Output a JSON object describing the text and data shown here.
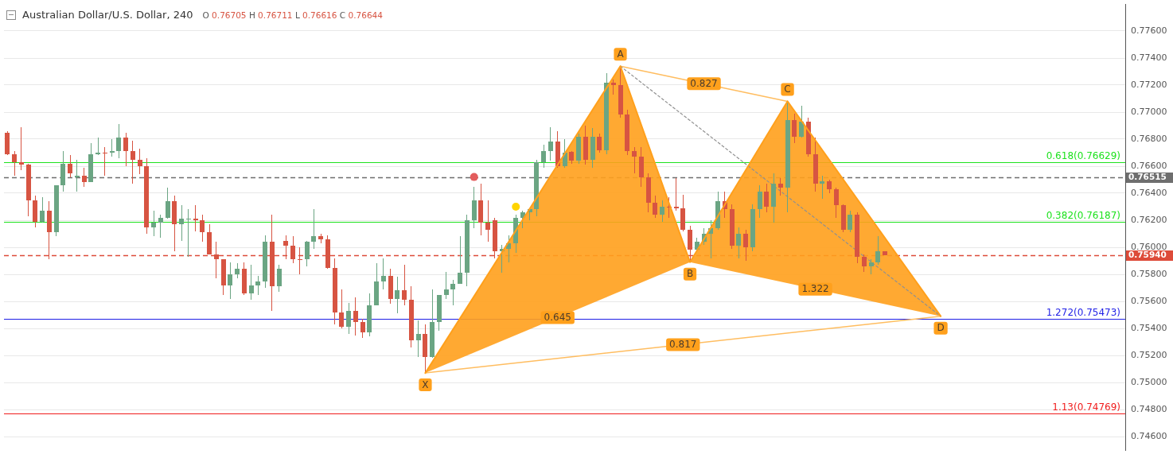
{
  "chart_data": {
    "type": "candlestick",
    "title": "Australian Dollar/U.S. Dollar, 240",
    "subtitle": "O 0.76705 H 0.76711 L 0.76616 C 0.76644",
    "categories": [
      null,
      null,
      null,
      null,
      null,
      null,
      null,
      null,
      null,
      null,
      null,
      null,
      null,
      null,
      null,
      null,
      null,
      null,
      null,
      null,
      null,
      null,
      null,
      null,
      null,
      null,
      null,
      null,
      null,
      null,
      null,
      null,
      null,
      null,
      null,
      null,
      null,
      null,
      null,
      null,
      null,
      null,
      null,
      null,
      null,
      null,
      null,
      null,
      null,
      null,
      null,
      null,
      null,
      null,
      null,
      null,
      null,
      null,
      null,
      null,
      null,
      null,
      null,
      null,
      null,
      null,
      null,
      null,
      null,
      null,
      null,
      null,
      null,
      null,
      null,
      null,
      null,
      null,
      null,
      null,
      null,
      null,
      null,
      null,
      null,
      null,
      null,
      null,
      null,
      null,
      null,
      null,
      null,
      null,
      null,
      null,
      null,
      null,
      null,
      null,
      null,
      null,
      null,
      null,
      null,
      null,
      null,
      null,
      null,
      null,
      null,
      null,
      null,
      null,
      null,
      null,
      null,
      null,
      null,
      null,
      null,
      null,
      null,
      null,
      null,
      null,
      null,
      null,
      null,
      null,
      null,
      null,
      null,
      null,
      null,
      null,
      null,
      null,
      null,
      null,
      null,
      null,
      null,
      null,
      null,
      null,
      null,
      null,
      null,
      null,
      null,
      null,
      null,
      null,
      null,
      null,
      null,
      null,
      null,
      null,
      null
    ],
    "ohlc": [
      [
        0.7685,
        0.7686,
        0.7668,
        0.7669
      ],
      [
        0.7669,
        0.7671,
        0.7653,
        0.7663
      ],
      [
        0.7663,
        0.7689,
        0.7657,
        0.7661
      ],
      [
        0.7661,
        0.7662,
        0.7623,
        0.7635
      ],
      [
        0.7635,
        0.7638,
        0.7615,
        0.7619
      ],
      [
        0.7619,
        0.7637,
        0.7618,
        0.7627
      ],
      [
        0.7627,
        0.7634,
        0.7591,
        0.7611
      ],
      [
        0.7611,
        0.7646,
        0.7608,
        0.7646
      ],
      [
        0.7646,
        0.7671,
        0.7641,
        0.7662
      ],
      [
        0.7662,
        0.7668,
        0.7652,
        0.7655
      ],
      [
        0.7652,
        0.7665,
        0.7641,
        0.7653
      ],
      [
        0.7653,
        0.7659,
        0.7645,
        0.7648
      ],
      [
        0.7648,
        0.7677,
        0.7648,
        0.7669
      ],
      [
        0.7669,
        0.7681,
        0.7668,
        0.767
      ],
      [
        0.767,
        0.7674,
        0.7653,
        0.767
      ],
      [
        0.767,
        0.768,
        0.7667,
        0.7671
      ],
      [
        0.7671,
        0.7691,
        0.7666,
        0.7681
      ],
      [
        0.7681,
        0.7685,
        0.766,
        0.7671
      ],
      [
        0.7671,
        0.7679,
        0.7647,
        0.7665
      ],
      [
        0.7665,
        0.7673,
        0.7654,
        0.766
      ],
      [
        0.766,
        0.7666,
        0.761,
        0.7615
      ],
      [
        0.7615,
        0.7627,
        0.7608,
        0.7618
      ],
      [
        0.7618,
        0.7624,
        0.7607,
        0.7622
      ],
      [
        0.7622,
        0.7644,
        0.7621,
        0.7634
      ],
      [
        0.7634,
        0.7638,
        0.7597,
        0.7617
      ],
      [
        0.7617,
        0.7631,
        0.7605,
        0.7621
      ],
      [
        0.7621,
        0.7628,
        0.7593,
        0.7621
      ],
      [
        0.7621,
        0.7631,
        0.7612,
        0.762
      ],
      [
        0.762,
        0.7624,
        0.7604,
        0.7611
      ],
      [
        0.7611,
        0.7617,
        0.7595,
        0.7595
      ],
      [
        0.7595,
        0.7604,
        0.7577,
        0.7591
      ],
      [
        0.7591,
        0.7591,
        0.7565,
        0.7572
      ],
      [
        0.7572,
        0.7589,
        0.7562,
        0.758
      ],
      [
        0.758,
        0.7588,
        0.7577,
        0.7584
      ],
      [
        0.7584,
        0.7589,
        0.7565,
        0.7566
      ],
      [
        0.7566,
        0.7587,
        0.7561,
        0.7572
      ],
      [
        0.7572,
        0.7579,
        0.7565,
        0.7575
      ],
      [
        0.7575,
        0.7609,
        0.757,
        0.7604
      ],
      [
        0.7604,
        0.7624,
        0.7553,
        0.7571
      ],
      [
        0.7571,
        0.7587,
        0.7567,
        0.7584
      ],
      [
        0.7605,
        0.7609,
        0.7591,
        0.7601
      ],
      [
        0.7601,
        0.7608,
        0.7588,
        0.7591
      ],
      [
        0.7591,
        0.76,
        0.758,
        0.7591
      ],
      [
        0.7591,
        0.7605,
        0.7586,
        0.7604
      ],
      [
        0.7604,
        0.7628,
        0.7599,
        0.7608
      ],
      [
        0.7608,
        0.761,
        0.7603,
        0.7606
      ],
      [
        0.7606,
        0.7609,
        0.7584,
        0.7585
      ],
      [
        0.7585,
        0.7592,
        0.7543,
        0.7552
      ],
      [
        0.7552,
        0.7569,
        0.754,
        0.7541
      ],
      [
        0.7541,
        0.7559,
        0.7536,
        0.7553
      ],
      [
        0.7553,
        0.7563,
        0.7535,
        0.7545
      ],
      [
        0.7545,
        0.7547,
        0.7533,
        0.7537
      ],
      [
        0.7537,
        0.7566,
        0.7534,
        0.7557
      ],
      [
        0.7557,
        0.7588,
        0.7557,
        0.7575
      ],
      [
        0.7575,
        0.7592,
        0.7569,
        0.7579
      ],
      [
        0.7579,
        0.7584,
        0.7558,
        0.7562
      ],
      [
        0.7562,
        0.7578,
        0.7551,
        0.7568
      ],
      [
        0.7568,
        0.7587,
        0.7557,
        0.7561
      ],
      [
        0.7561,
        0.7571,
        0.7526,
        0.7531
      ],
      [
        0.7531,
        0.7546,
        0.7519,
        0.7536
      ],
      [
        0.7536,
        0.7543,
        0.7507,
        0.7519
      ],
      [
        0.7519,
        0.7569,
        0.7518,
        0.7545
      ],
      [
        0.7545,
        0.7565,
        0.7538,
        0.7565
      ],
      [
        0.7565,
        0.7582,
        0.7562,
        0.7569
      ],
      [
        0.7569,
        0.7576,
        0.7557,
        0.7573
      ],
      [
        0.7573,
        0.7608,
        0.7573,
        0.7581
      ],
      [
        0.7581,
        0.7624,
        0.7571,
        0.762
      ],
      [
        0.762,
        0.7645,
        0.7614,
        0.7635
      ],
      [
        0.7635,
        0.7647,
        0.7609,
        0.7618
      ],
      [
        0.7618,
        0.7635,
        0.7604,
        0.7613
      ],
      [
        0.762,
        0.7622,
        0.7592,
        0.7597
      ],
      [
        0.7597,
        0.7602,
        0.7581,
        0.7599
      ],
      [
        0.7599,
        0.7609,
        0.7589,
        0.7603
      ],
      [
        0.7603,
        0.7624,
        0.7596,
        0.7622
      ],
      [
        0.7622,
        0.7627,
        0.7614,
        0.7626
      ],
      [
        0.7626,
        0.7628,
        0.762,
        0.7628
      ],
      [
        0.7628,
        0.7665,
        0.7623,
        0.7663
      ],
      [
        0.7663,
        0.7676,
        0.7659,
        0.7671
      ],
      [
        0.7671,
        0.7689,
        0.7664,
        0.7678
      ],
      [
        0.7678,
        0.7686,
        0.7659,
        0.766
      ],
      [
        0.766,
        0.768,
        0.7659,
        0.767
      ],
      [
        0.76705,
        0.76711,
        0.76616,
        0.76644
      ],
      [
        0.7664,
        0.7684,
        0.7662,
        0.7682
      ],
      [
        0.7682,
        0.769,
        0.7661,
        0.7665
      ],
      [
        0.7665,
        0.7688,
        0.7659,
        0.7682
      ],
      [
        0.7682,
        0.7684,
        0.767,
        0.7672
      ],
      [
        0.7672,
        0.7729,
        0.7669,
        0.7722
      ],
      [
        0.7722,
        0.7724,
        0.7713,
        0.772
      ],
      [
        0.772,
        0.7734,
        0.7696,
        0.7698
      ],
      [
        0.7698,
        0.7702,
        0.7668,
        0.7671
      ],
      [
        0.7671,
        0.7674,
        0.7655,
        0.7667
      ],
      [
        0.7667,
        0.7674,
        0.7645,
        0.7652
      ],
      [
        0.7652,
        0.7655,
        0.7626,
        0.7633
      ],
      [
        0.7633,
        0.7638,
        0.7622,
        0.7624
      ],
      [
        0.7624,
        0.7635,
        0.7619,
        0.763
      ],
      [
        0.763,
        0.7637,
        0.7622,
        0.763
      ],
      [
        0.763,
        0.7651,
        0.7627,
        0.7629
      ],
      [
        0.7629,
        0.7639,
        0.7612,
        0.7613
      ],
      [
        0.7613,
        0.7616,
        0.7589,
        0.7598
      ],
      [
        0.7598,
        0.7607,
        0.7597,
        0.7604
      ],
      [
        0.7604,
        0.7614,
        0.7602,
        0.761
      ],
      [
        0.761,
        0.762,
        0.7592,
        0.7614
      ],
      [
        0.7614,
        0.7641,
        0.7613,
        0.7634
      ],
      [
        0.7634,
        0.7641,
        0.7622,
        0.7628
      ],
      [
        0.7628,
        0.7632,
        0.7599,
        0.7601
      ],
      [
        0.7601,
        0.7615,
        0.7592,
        0.761
      ],
      [
        0.761,
        0.7613,
        0.759,
        0.76
      ],
      [
        0.76,
        0.7632,
        0.7597,
        0.7628
      ],
      [
        0.7628,
        0.7646,
        0.7622,
        0.7641
      ],
      [
        0.7641,
        0.7647,
        0.7626,
        0.763
      ],
      [
        0.763,
        0.7655,
        0.7618,
        0.7647
      ],
      [
        0.7647,
        0.7651,
        0.7638,
        0.7644
      ],
      [
        0.7644,
        0.7708,
        0.7626,
        0.7694
      ],
      [
        0.7694,
        0.7699,
        0.7677,
        0.7682
      ],
      [
        0.7682,
        0.7705,
        0.7681,
        0.7693
      ],
      [
        0.7693,
        0.7696,
        0.7667,
        0.7669
      ],
      [
        0.7669,
        0.7681,
        0.7641,
        0.7647
      ],
      [
        0.7647,
        0.7653,
        0.7636,
        0.7649
      ],
      [
        0.7649,
        0.765,
        0.764,
        0.7643
      ],
      [
        0.7643,
        0.7644,
        0.7622,
        0.7631
      ],
      [
        0.7631,
        0.7632,
        0.7611,
        0.7613
      ],
      [
        0.7613,
        0.7627,
        0.7611,
        0.7624
      ],
      [
        0.7624,
        0.7626,
        0.7588,
        0.7593
      ],
      [
        0.7593,
        0.7595,
        0.7582,
        0.7586
      ],
      [
        0.7586,
        0.7591,
        0.758,
        0.7589
      ],
      [
        0.7589,
        0.7608,
        0.7587,
        0.7597
      ],
      [
        0.7597,
        0.7597,
        0.7594,
        0.7594
      ],
      null,
      null,
      null,
      null,
      null,
      null,
      null,
      null,
      null,
      null,
      null,
      null,
      null,
      null,
      null,
      null,
      null,
      null,
      null,
      null,
      null,
      null,
      null,
      null,
      null,
      null,
      null,
      null,
      null,
      null,
      null,
      null,
      null,
      null
    ],
    "colors": [
      "#d75442",
      "#d75442",
      "#d75442",
      "#d75442",
      "#d75442",
      "#6ba583",
      "#d75442",
      "#6ba583",
      "#6ba583",
      "#d75442",
      "#6ba583",
      "#d75442",
      "#6ba583",
      "#6ba583",
      "#d75442",
      "#6ba583",
      "#6ba583",
      "#d75442",
      "#d75442",
      "#d75442",
      "#d75442",
      "#6ba583",
      "#6ba583",
      "#6ba583",
      "#d75442",
      "#6ba583",
      "#6ba583",
      "#d75442",
      "#d75442",
      "#d75442",
      "#d75442",
      "#d75442",
      "#6ba583",
      "#6ba583",
      "#d75442",
      "#6ba583",
      "#6ba583",
      "#6ba583",
      "#d75442",
      "#6ba583",
      "#d75442",
      "#d75442",
      "#d75442",
      "#6ba583",
      "#6ba583",
      "#d75442",
      "#d75442",
      "#d75442",
      "#d75442",
      "#6ba583",
      "#d75442",
      "#d75442",
      "#6ba583",
      "#6ba583",
      "#6ba583",
      "#d75442",
      "#6ba583",
      "#d75442",
      "#d75442",
      "#6ba583",
      "#d75442",
      "#6ba583",
      "#6ba583",
      "#6ba583",
      "#6ba583",
      "#6ba583",
      "#6ba583",
      "#6ba583",
      "#d75442",
      "#d75442",
      "#d75442",
      "#6ba583",
      "#6ba583",
      "#6ba583",
      "#6ba583",
      "#6ba583",
      "#6ba583",
      "#6ba583",
      "#6ba583",
      "#d75442",
      "#6ba583",
      "#d75442",
      "#6ba583",
      "#d75442",
      "#6ba583",
      "#d75442",
      "#6ba583",
      "#d75442",
      "#d75442",
      "#d75442",
      "#d75442",
      "#d75442",
      "#d75442",
      "#d75442",
      "#6ba583",
      "#d75442",
      "#d75442",
      "#d75442",
      "#d75442",
      "#6ba583",
      "#6ba583",
      "#6ba583",
      "#6ba583",
      "#d75442",
      "#d75442",
      "#6ba583",
      "#d75442",
      "#6ba583",
      "#6ba583",
      "#d75442",
      "#6ba583",
      "#d75442",
      "#6ba583",
      "#d75442",
      "#6ba583",
      "#d75442",
      "#d75442",
      "#6ba583",
      "#d75442",
      "#d75442",
      "#d75442",
      "#6ba583",
      "#d75442",
      "#d75442",
      "#6ba583",
      "#6ba583",
      "#d75442",
      null,
      null,
      null,
      null,
      null,
      null,
      null,
      null,
      null,
      null,
      null,
      null,
      null,
      null,
      null,
      null,
      null,
      null,
      null,
      null,
      null,
      null,
      null,
      null,
      null,
      null,
      null,
      null,
      null,
      null,
      null,
      null,
      null,
      null
    ],
    "series": [
      {
        "type": "area",
        "color": "#ffa01c",
        "values": [
          null,
          null,
          null,
          null,
          null,
          null,
          null,
          null,
          null,
          null,
          null,
          null,
          null,
          null,
          null,
          null,
          null,
          null,
          null,
          null,
          null,
          null,
          null,
          null,
          null,
          null,
          null,
          null,
          null,
          null,
          null,
          null,
          null,
          null,
          null,
          null,
          null,
          null,
          null,
          null,
          null,
          null,
          null,
          null,
          null,
          null,
          null,
          null,
          null,
          null,
          null,
          null,
          null,
          null,
          null,
          null,
          null,
          null,
          null,
          null,
          0.7507,
          null,
          null,
          null,
          null,
          null,
          null,
          null,
          null,
          null,
          null,
          null,
          null,
          null,
          null,
          null,
          null,
          null,
          null,
          null,
          null,
          null,
          null,
          null,
          null,
          null,
          null,
          null,
          0.7734,
          null,
          null,
          null,
          null,
          null,
          null,
          null,
          null,
          null,
          0.7589,
          null,
          null,
          null,
          null,
          null,
          null,
          null,
          null,
          null,
          null,
          null,
          null,
          null,
          0.7708,
          null,
          null,
          null,
          null,
          null,
          null,
          null,
          null,
          null,
          null,
          null,
          null,
          null,
          null,
          null,
          null,
          null,
          null,
          null,
          null,
          null,
          0.7549,
          null,
          null,
          null,
          null,
          null,
          null,
          null,
          null,
          null,
          null,
          null,
          null,
          null,
          null,
          null,
          null,
          null,
          null,
          null,
          null,
          null,
          null,
          null,
          null,
          null,
          null
        ]
      },
      {
        "type": "scatter",
        "color": "#e35d5d",
        "marker": "circle",
        "values": [
          null,
          null,
          null,
          null,
          null,
          null,
          null,
          null,
          null,
          null,
          null,
          null,
          null,
          null,
          null,
          null,
          null,
          null,
          null,
          null,
          null,
          null,
          null,
          null,
          null,
          null,
          null,
          null,
          null,
          null,
          null,
          null,
          null,
          null,
          null,
          null,
          null,
          null,
          null,
          null,
          null,
          null,
          null,
          null,
          null,
          null,
          null,
          null,
          null,
          null,
          null,
          null,
          null,
          null,
          null,
          null,
          null,
          null,
          null,
          null,
          null,
          null,
          null,
          null,
          null,
          null,
          null,
          0.7652,
          null,
          null,
          null,
          null,
          null,
          null,
          null,
          null,
          null,
          null,
          null,
          null,
          null,
          null,
          null,
          null,
          null,
          null,
          null,
          null,
          null,
          null,
          null,
          null,
          null,
          null,
          null,
          null,
          null,
          null,
          null,
          null,
          null,
          null,
          null,
          null,
          null,
          null,
          null,
          null,
          null,
          null,
          null,
          null,
          null,
          null,
          null,
          null,
          null,
          null,
          null,
          null,
          null,
          null,
          null,
          null,
          null,
          null,
          null,
          null,
          null,
          null,
          null,
          null,
          null,
          null,
          null,
          null,
          null,
          null,
          null,
          null,
          null,
          null,
          null,
          null,
          null,
          null,
          null,
          null,
          null,
          null,
          null,
          null,
          null,
          null,
          null,
          null,
          null,
          null,
          null,
          null,
          null
        ]
      },
      {
        "type": "scatter",
        "color": "#ffd400",
        "marker": "circle",
        "values": [
          null,
          null,
          null,
          null,
          null,
          null,
          null,
          null,
          null,
          null,
          null,
          null,
          null,
          null,
          null,
          null,
          null,
          null,
          null,
          null,
          null,
          null,
          null,
          null,
          null,
          null,
          null,
          null,
          null,
          null,
          null,
          null,
          null,
          null,
          null,
          null,
          null,
          null,
          null,
          null,
          null,
          null,
          null,
          null,
          null,
          null,
          null,
          null,
          null,
          null,
          null,
          null,
          null,
          null,
          null,
          null,
          null,
          null,
          null,
          null,
          null,
          null,
          null,
          null,
          null,
          null,
          null,
          null,
          null,
          null,
          null,
          null,
          null,
          0.763,
          null,
          null,
          null,
          null,
          null,
          null,
          null,
          null,
          null,
          null,
          null,
          null,
          null,
          null,
          null,
          null,
          null,
          null,
          null,
          null,
          null,
          null,
          null,
          null,
          null,
          null,
          null,
          null,
          null,
          null,
          null,
          null,
          null,
          null,
          null,
          null,
          null,
          null,
          null,
          null,
          null,
          null,
          null,
          null,
          null,
          null,
          null,
          null,
          null,
          null,
          null,
          null,
          null,
          null,
          null,
          null,
          null,
          null,
          null,
          null,
          null,
          null,
          null,
          null,
          null,
          null,
          null,
          null,
          null,
          null,
          null,
          null,
          null,
          null,
          null,
          null,
          null,
          null,
          null,
          null,
          null,
          null,
          null,
          null,
          null,
          null,
          null
        ]
      }
    ],
    "ylim": [
      0.745,
      0.778
    ],
    "yticks": [
      {
        "value": 0.746,
        "label": "0.74600"
      },
      {
        "value": 0.748,
        "label": "0.74800"
      },
      {
        "value": 0.75,
        "label": "0.75000"
      },
      {
        "value": 0.752,
        "label": "0.75200"
      },
      {
        "value": 0.754,
        "label": "0.75400"
      },
      {
        "value": 0.756,
        "label": "0.75600"
      },
      {
        "value": 0.758,
        "label": "0.75800"
      },
      {
        "value": 0.76,
        "label": "0.76000"
      },
      {
        "value": 0.762,
        "label": "0.76200"
      },
      {
        "value": 0.764,
        "label": "0.76400"
      },
      {
        "value": 0.766,
        "label": "0.76600"
      },
      {
        "value": 0.768,
        "label": "0.76800"
      },
      {
        "value": 0.77,
        "label": "0.77000"
      },
      {
        "value": 0.772,
        "label": "0.77200"
      },
      {
        "value": 0.774,
        "label": "0.77400"
      },
      {
        "value": 0.776,
        "label": "0.77600"
      }
    ],
    "ref_lines": [
      {
        "axis": "y",
        "value": 0.76629,
        "label": "0.618(0.76629)",
        "color": "#1de21d"
      },
      {
        "axis": "y",
        "value": 0.76187,
        "label": "0.382(0.76187)",
        "color": "#1de21d"
      },
      {
        "axis": "y",
        "value": 0.75473,
        "label": "1.272(0.75473)",
        "color": "#1f1fe6"
      },
      {
        "axis": "y",
        "value": 0.74769,
        "label": "1.13(0.74769)",
        "color": "#f01c1c"
      },
      {
        "axis": "y",
        "value": 0.76515,
        "label": "0.76515",
        "color": "#6e6e6e",
        "line_style": "dashed"
      },
      {
        "axis": "y",
        "value": 0.7594,
        "label": "0.75940",
        "color": "#dd4b39",
        "line_style": "dashed"
      }
    ],
    "annotations": [
      {
        "text": "X",
        "y": 0.7507
      },
      {
        "text": "A",
        "y": 0.7734
      },
      {
        "text": "B",
        "y": 0.7589
      },
      {
        "text": "C",
        "y": 0.7708
      },
      {
        "text": "D",
        "y": 0.7549
      },
      "0.645",
      "0.827",
      "1.322",
      "0.817"
    ],
    "grid": "y",
    "tick_labels": "y"
  }
}
